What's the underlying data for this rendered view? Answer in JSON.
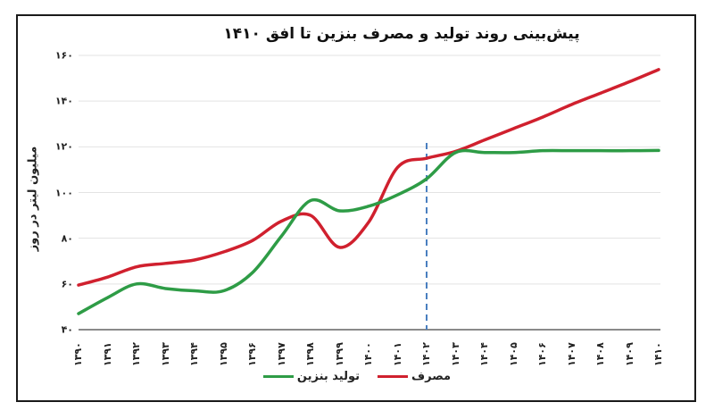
{
  "chart_data": {
    "type": "line",
    "title": "پیش‌بینی روند تولید و مصرف بنزین تا افق ۱۴۱۰",
    "xlabel": "",
    "ylabel": "میلیون لیتر در روز",
    "ylim": [
      40,
      160
    ],
    "yticks": [
      "۴۰",
      "۶۰",
      "۸۰",
      "۱۰۰",
      "۱۲۰",
      "۱۴۰",
      "۱۶۰"
    ],
    "ytick_values": [
      40,
      60,
      80,
      100,
      120,
      140,
      160
    ],
    "categories": [
      "۱۳۹۰",
      "۱۳۹۱",
      "۱۳۹۲",
      "۱۳۹۳",
      "۱۳۹۴",
      "۱۳۹۵",
      "۱۳۹۶",
      "۱۳۹۷",
      "۱۳۹۸",
      "۱۳۹۹",
      "۱۴۰۰",
      "۱۴۰۱",
      "۱۴۰۲",
      "۱۴۰۳",
      "۱۴۰۴",
      "۱۴۰۵",
      "۱۴۰۶",
      "۱۴۰۷",
      "۱۴۰۸",
      "۱۴۰۹",
      "۱۴۱۰"
    ],
    "x": [
      1390,
      1391,
      1392,
      1393,
      1394,
      1395,
      1396,
      1397,
      1398,
      1399,
      1400,
      1401,
      1402,
      1403,
      1404,
      1405,
      1406,
      1407,
      1408,
      1409,
      1410
    ],
    "series": [
      {
        "name": "مصرف",
        "color": "#d0202e",
        "values": [
          59.5,
          63,
          67.5,
          69,
          70.5,
          74,
          79,
          87.5,
          90,
          76,
          87,
          111,
          115,
          118,
          123,
          128,
          133,
          138.5,
          143.5,
          148.5,
          153.8
        ]
      },
      {
        "name": "تولید بنزین",
        "color": "#2e9c46",
        "values": [
          47,
          54,
          60,
          58,
          57,
          57,
          65,
          81,
          96.5,
          92,
          94,
          99,
          106,
          117.5,
          117.5,
          117.5,
          118.3,
          118.3,
          118.3,
          118.3,
          118.4
        ]
      }
    ],
    "annotations": [
      {
        "type": "vertical-dashed-line",
        "x": 1402,
        "color": "#4a7fc0"
      }
    ],
    "grid": true,
    "legend_position": "bottom"
  },
  "legend": {
    "items": [
      {
        "label": "مصرف",
        "color": "#d0202e"
      },
      {
        "label": "تولید بنزین",
        "color": "#2e9c46"
      }
    ]
  }
}
